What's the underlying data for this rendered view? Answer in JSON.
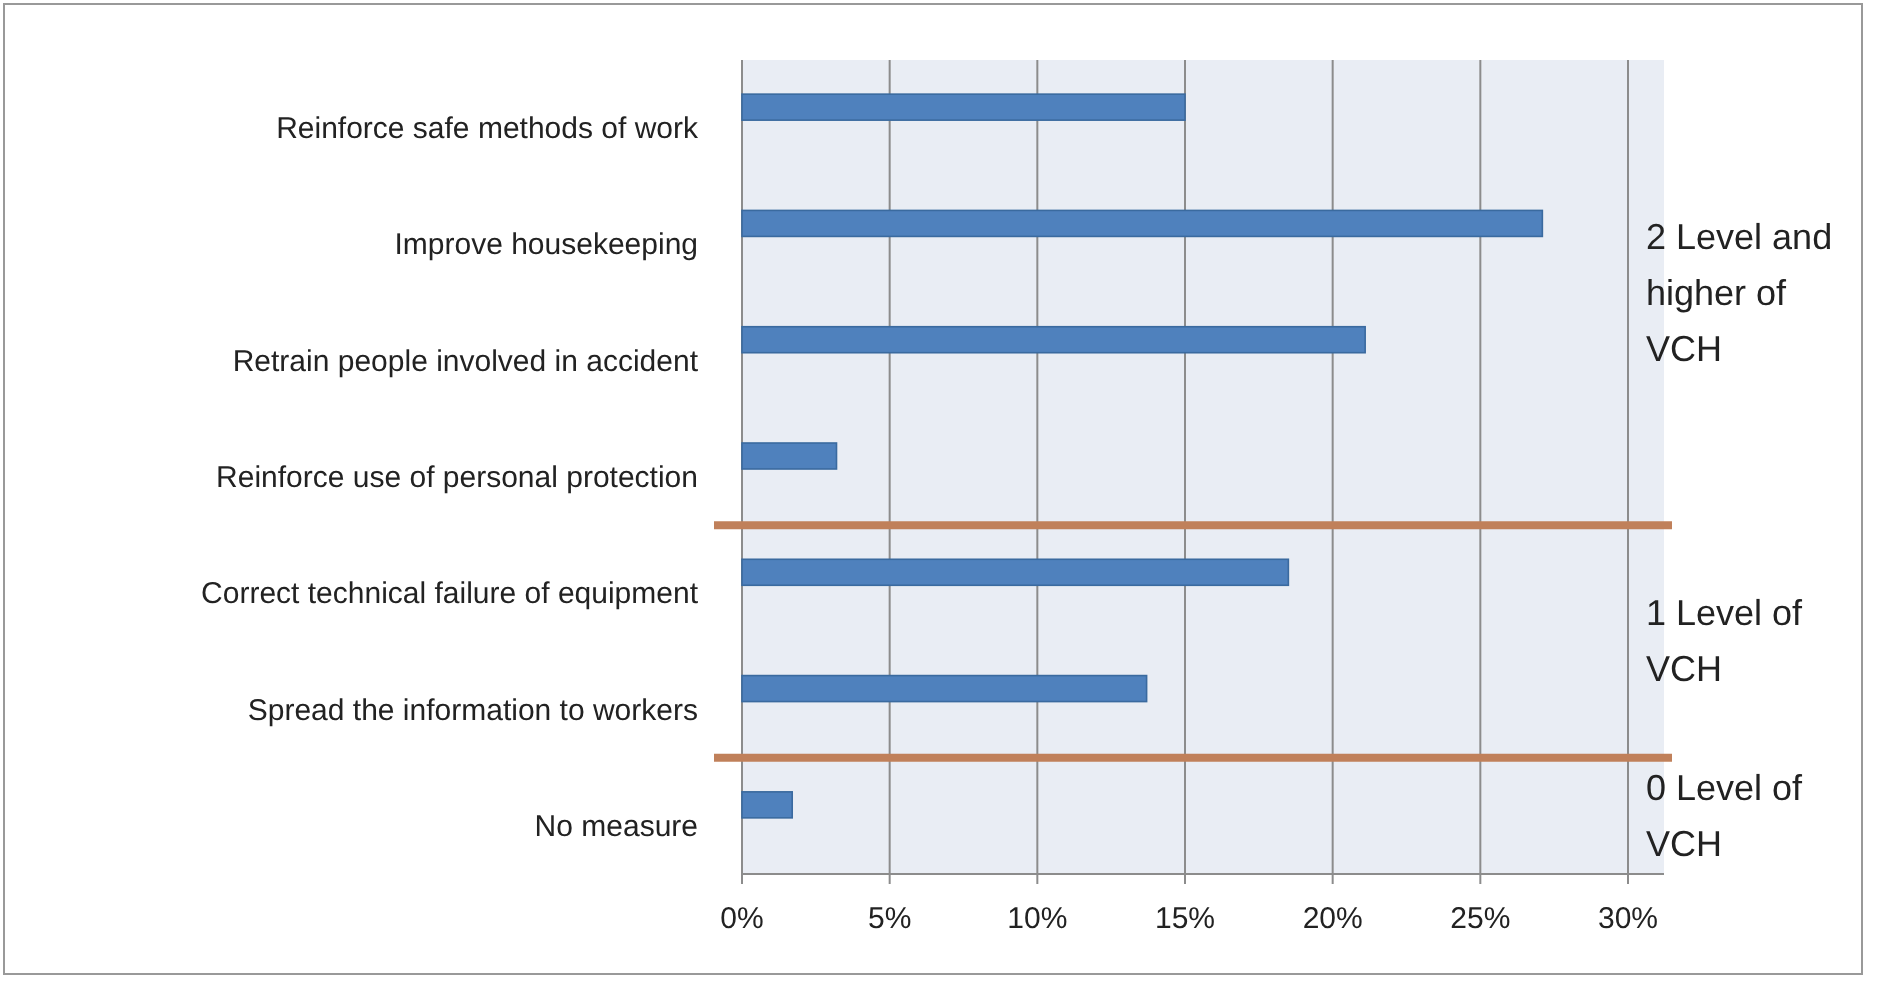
{
  "chart_data": {
    "type": "bar",
    "orientation": "horizontal",
    "categories": [
      "Reinforce safe methods of work",
      "Improve housekeeping",
      "Retrain people involved in accident",
      "Reinforce use of personal protection",
      "Correct technical failure of equipment",
      "Spread the information to workers",
      "No measure"
    ],
    "values": [
      15,
      27.1,
      21.1,
      3.2,
      18.5,
      13.7,
      1.7
    ],
    "color": "#4f81bd",
    "xlim": [
      0,
      30
    ],
    "xticks": [
      {
        "value": 0,
        "label": "0%"
      },
      {
        "value": 5,
        "label": "5%"
      },
      {
        "value": 10,
        "label": "10%"
      },
      {
        "value": 15,
        "label": "15%"
      },
      {
        "value": 20,
        "label": "20%"
      },
      {
        "value": 25,
        "label": "25%"
      },
      {
        "value": 30,
        "label": "30%"
      }
    ],
    "grid": "x",
    "ref_lines": [
      {
        "axis": "y",
        "value": "Reinforce use of personal protection",
        "color": "#c0805a"
      },
      {
        "axis": "y",
        "value": "Spread the information to workers",
        "color": "#c0805a"
      }
    ],
    "annotations": [
      "2 Level and higher of VCH",
      "1 Level of VCH",
      "0 Level of VCH"
    ]
  }
}
